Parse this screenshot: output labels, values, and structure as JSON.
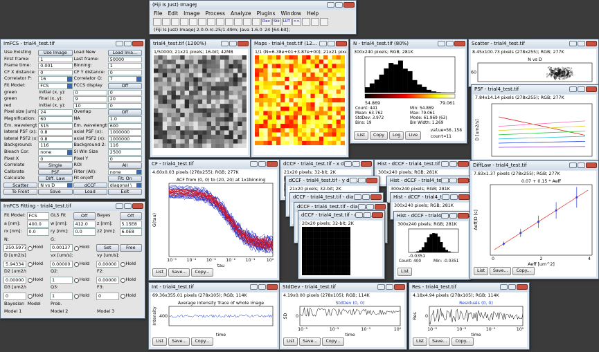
{
  "fiji": {
    "title": "(Fiji Is Just) ImageJ",
    "menu": [
      "File",
      "Edit",
      "Image",
      "Process",
      "Analyze",
      "Plugins",
      "Window",
      "Help"
    ],
    "toolbar": [
      "Dev",
      "Stk",
      "LUT",
      ">>"
    ],
    "status": "(Fiji Is Just) ImageJ 2.0.0-rc-25/1.49m; Java 1.6.0_24 [64-bit];"
  },
  "imfcs": {
    "title": "ImFCS - trial4_test.tif",
    "rows": [
      [
        "Use Existing",
        "Use Image",
        "Load New",
        "Load Ima..."
      ],
      [
        "First frame:",
        "1",
        "Last frame:",
        "50000"
      ],
      [
        "Frame time:",
        "0.001",
        "Binning:",
        "1"
      ],
      [
        "CF X distance:",
        "0",
        "CF Y distance:",
        "0"
      ],
      [
        "Correlator P:",
        "16",
        "Correlator Q:",
        "7"
      ],
      [
        "Fit Model:",
        "FCS",
        "FCCS display",
        "Off"
      ],
      [
        "green",
        "initial (x, y):",
        "0",
        "0"
      ],
      [
        "green",
        "final (x, y):",
        "9",
        "20"
      ],
      [
        "red",
        "initial (x, y):",
        "10",
        "0"
      ],
      [
        "Pixel size [um]:",
        "24",
        "Overlap",
        "Off"
      ],
      [
        "Magnification:",
        "60",
        "NA",
        "1.0"
      ],
      [
        "Em. wavelength...",
        "515",
        "Em. wavelength...",
        "600"
      ],
      [
        "lateral PSF (x):",
        "0.8",
        "axial PSF (x):",
        "1000000"
      ],
      [
        "lateral PSF2 (x):",
        "0.8",
        "axial PSF2 (x):",
        "1000000"
      ],
      [
        "Background:",
        "116",
        "Background 2:",
        "116"
      ],
      [
        "Bleach Cor.",
        "none",
        "Sl Win Size",
        "2500"
      ],
      [
        "Pixel X",
        "0",
        "Pixel Y",
        "0"
      ],
      [
        "Correlate",
        "Single",
        "ROI",
        "All"
      ],
      [
        "Calibrate",
        "PSF",
        "Filter (All):",
        "none"
      ],
      [
        "Calculate",
        "Diff. Law",
        "Fit on/off",
        "Fit: On"
      ],
      [
        "Scatter",
        "N vs D",
        "dCCF",
        "diagonal \\"
      ],
      [
        "To Front",
        "Save",
        "Load",
        "Exit"
      ]
    ]
  },
  "fitting": {
    "title": "ImFCS Fitting - trial4_test.tif",
    "rows": [
      [
        "Fit Model:",
        "FCS",
        "GLS Fit",
        "Off",
        "Bayes",
        "Off"
      ],
      [
        "a [nm]:",
        "400.0",
        "w [nm]:",
        "412.0",
        "z [nm]:",
        "5.15E8"
      ],
      [
        "rx [nm]:",
        "0.0",
        "ry [nm]:",
        "0.0",
        "z2 [nm]:",
        "6.0E8"
      ],
      [
        "N:",
        "G:"
      ],
      [
        "250.59777",
        "Hold",
        "0.00137",
        "Hold",
        "Set",
        "Free"
      ],
      [
        "D [um2/s]:",
        "vx [um/s]:",
        "vy [um/s]:"
      ],
      [
        "5.94334",
        "Hold",
        "0.00000",
        "Hold",
        "0.00000",
        "Hold"
      ],
      [
        "D2 [um2/s]:",
        "Q2:",
        "F2:"
      ],
      [
        "0.00000",
        "Hold",
        "1",
        "Hold",
        "0.00000",
        "Hold"
      ],
      [
        "D3 [um2/s]:",
        "Q3:",
        "F3:"
      ],
      [
        "0",
        "Hold",
        "1",
        "Hold",
        "0",
        "Hold"
      ],
      [
        "Bayesian",
        "Model",
        "Prob."
      ],
      [
        "Model 1",
        "Model 2",
        "Model 3"
      ]
    ]
  },
  "windows": {
    "image": {
      "title": "trial4_test.tif (1200%)",
      "info": "1/50000; 21x21 pixels; 16-bit; 42MB"
    },
    "maps": {
      "title": "Maps - trial4_test.tif (12...",
      "info": "1/1 (N=6.38e+01+3.87e+00); 21x21 pixels; 3..."
    },
    "n_hist": {
      "title": "N - trial4_test.tif (80%)",
      "info": "300x240 pixels; RGB; 281K",
      "range": [
        "54.869",
        "79.061"
      ],
      "stats": [
        "Count: 441",
        "Min: 54.869",
        "Mean: 63.762",
        "Max: 79.061",
        "StdDev: 3.972",
        "Mode: 61.969 (63)",
        "Bins: 19",
        "Bin Width: 1.269"
      ],
      "buttons": [
        "List",
        "Copy",
        "Log",
        "Live"
      ],
      "readout": [
        "value=56.158",
        "count=11"
      ]
    },
    "scatter": {
      "title": "Scatter - trial4_test.tif",
      "info": "8.45x100.73 pixels (278x255); RGB; 277K",
      "plot_title": "N vs D",
      "yticks": [
        "60"
      ]
    },
    "psf": {
      "title": "PSF - trial4_test.tif",
      "info": "7.84x14.14 pixels (278x255); RGB; 277K",
      "ylabel": "D [um2/s]"
    },
    "cf": {
      "title": "CF - trial4_test.tif",
      "info": "4.60x0.03 pixels (278x255); RGB; 277K",
      "plot_title": "ACF from (0, 0) to (20, 20) at 1x1binning",
      "ylabel": "G(tau)",
      "xlabel": "tau",
      "xticks": [
        "10⁻⁵",
        "10⁻⁴",
        "10⁻³",
        "10⁻²",
        "10⁻¹",
        "10⁰"
      ],
      "buttons": [
        "List",
        "Save...",
        "Copy..."
      ]
    },
    "dccf_x": {
      "title": "dCCF - trial4_test.tif - x dire...",
      "info": "21x20 pixels; 32-bit; 2K"
    },
    "hist_x": {
      "title": "Hist - dCCF - trial4_test.tif - x dire...",
      "info": "300x240 pixels; RGB; 281K"
    },
    "dccf_y": {
      "title": "dCCF - trial4_test.tif - y dire...",
      "info": "21x20 pixels; 32-bit; 2K"
    },
    "hist_y": {
      "title": "Hist - dCCF - trial4_test.tif - y dire...",
      "info": "300x240 pixels; RGB; 281K"
    },
    "dccf_d": {
      "title": "dCCF - trial4_test.tif - diago...",
      "info": "20x20 pixels; 32-bit; 2K"
    },
    "hist_d": {
      "title": "Hist - dCCF - trial4_test.tif - diago...",
      "info": "300x240 pixels; RGB; 281K"
    },
    "dccf_d2": {
      "title": "dCCF - trial4_test.tif - diago...",
      "info": "20x20 pixels; 32-bit; 2K"
    },
    "hist_d2": {
      "title": "Hist - dCCF - trial4_test.tif - diago...",
      "info": "300x240 pixels; RGB; 281K",
      "range": [
        "-0.0351"
      ],
      "stats": [
        "Count: 400",
        "Min: -0.0351"
      ],
      "buttons": [
        "List"
      ]
    },
    "dccf_d3": {
      "title": "dCCF - trial4_test.tif - diago...",
      "info": "20x20 pixels; 32-bit; 2K"
    },
    "difflaw": {
      "title": "DiffLaw - trial4_test.tif",
      "info": "7.83x1.37 pixels (278x255); RGB; 277K",
      "plot_title": "0.07 + 0.15 * Aeff",
      "ylabel": "Aeff/D [s]",
      "xlabel": "Aeff [um^2]",
      "xticks": [
        "0",
        "2",
        "4"
      ],
      "buttons": [
        "List",
        "Save...",
        "Copy..."
      ]
    },
    "int": {
      "title": "Int - trial4_test.tif",
      "info": "69.36x355.01 pixels (278x105); RGB; 114K",
      "plot_title": "Average intensity Trace of whole image",
      "ylabel": "Intensity",
      "yticks": [
        "400"
      ],
      "xlabel": "time",
      "buttons": [
        "List",
        "Save...",
        "Copy..."
      ]
    },
    "stddev": {
      "title": "StdDev - trial4_test.tif",
      "info": "4.19x0.00 pixels (278x105); RGB; 114K",
      "plot_title": "StdDev (0, 0)",
      "ylabel": "SD",
      "yticks": [
        "0"
      ],
      "xlabel": "time",
      "xticks": [
        "10⁻³",
        "10⁻²",
        "10⁻¹",
        "10⁰"
      ],
      "buttons": [
        "List",
        "Save...",
        "Copy..."
      ]
    },
    "res": {
      "title": "Res - trial4_test.tif",
      "info": "4.18x4.94 pixels (278x105); RGB; 114K",
      "plot_title": "Residuals (0, 0)",
      "ylabel": "Res",
      "yticks": [
        "0"
      ],
      "xlabel": "time",
      "xticks": [
        "10⁻³",
        "10⁻²",
        "10⁻¹",
        "10⁰"
      ],
      "buttons": [
        "List",
        "Save...",
        "Copy..."
      ]
    }
  }
}
